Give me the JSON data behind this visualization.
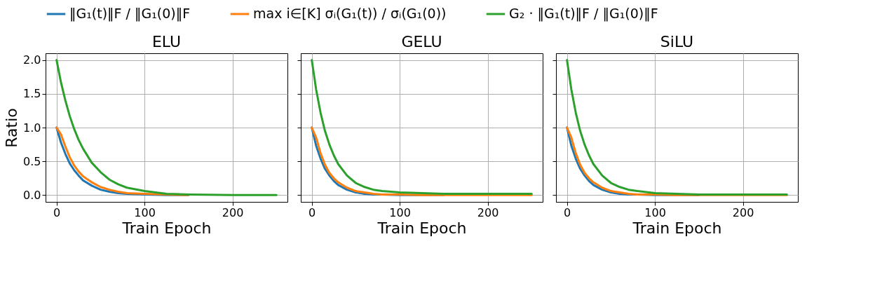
{
  "chart_data": [
    {
      "type": "line",
      "title": "ELU",
      "xlabel": "Train Epoch",
      "ylabel": "Ratio",
      "x": [
        0,
        5,
        10,
        15,
        20,
        25,
        30,
        40,
        50,
        60,
        70,
        80,
        100,
        125,
        150,
        200,
        250
      ],
      "series": [
        {
          "name": "‖G₁(t)‖F / ‖G₁(0)‖F",
          "color": "#1f77b4",
          "values": [
            1,
            0.78,
            0.61,
            0.47,
            0.37,
            0.29,
            0.22,
            0.14,
            0.08,
            0.05,
            0.03,
            0.02,
            0.01,
            0,
            0,
            null,
            null
          ]
        },
        {
          "name": "max i∈[K] σᵢ(G₁(t)) / σᵢ(G₁(0))",
          "color": "#ff7f0e",
          "values": [
            1,
            0.9,
            0.72,
            0.56,
            0.44,
            0.35,
            0.28,
            0.19,
            0.12,
            0.08,
            0.05,
            0.03,
            0.02,
            0.01,
            0,
            null,
            null
          ]
        },
        {
          "name": "G₂ · ‖G₁(t)‖F / ‖G₁(0)‖F",
          "color": "#2ca02c",
          "values": [
            2,
            1.67,
            1.4,
            1.17,
            0.98,
            0.82,
            0.69,
            0.48,
            0.34,
            0.23,
            0.16,
            0.11,
            0.06,
            0.02,
            0.01,
            0,
            0
          ]
        }
      ],
      "xlim": [
        -12.5,
        262.5
      ],
      "xticks": [
        0,
        100,
        200
      ],
      "ylim": [
        -0.1,
        2.1
      ],
      "yticks": [
        {
          "value": 0,
          "label": "0.0"
        },
        {
          "value": 0.5,
          "label": "0.5"
        },
        {
          "value": 1,
          "label": "1.0"
        },
        {
          "value": 1.5,
          "label": "1.5"
        },
        {
          "value": 2,
          "label": "2.0"
        }
      ],
      "grid": true,
      "legend": "top",
      "line_style": "solid",
      "marker": "none"
    },
    {
      "type": "line",
      "title": "GELU",
      "xlabel": "Train Epoch",
      "x": [
        0,
        5,
        10,
        15,
        20,
        25,
        30,
        40,
        50,
        60,
        70,
        80,
        100,
        125,
        150,
        200,
        250
      ],
      "series": [
        {
          "name": "‖G₁(t)‖F / ‖G₁(0)‖F",
          "color": "#1f77b4",
          "values": [
            1,
            0.73,
            0.54,
            0.39,
            0.29,
            0.21,
            0.15,
            0.08,
            0.04,
            0.02,
            0.01,
            0.01,
            0,
            0,
            0,
            null,
            null
          ]
        },
        {
          "name": "max i∈[K] σᵢ(G₁(t)) / σᵢ(G₁(0))",
          "color": "#ff7f0e",
          "values": [
            1,
            0.85,
            0.62,
            0.45,
            0.33,
            0.25,
            0.19,
            0.11,
            0.06,
            0.04,
            0.02,
            0.01,
            0.01,
            0,
            0,
            0,
            0
          ]
        },
        {
          "name": "G₂ · ‖G₁(t)‖F / ‖G₁(0)‖F",
          "color": "#2ca02c",
          "values": [
            2,
            1.56,
            1.22,
            0.95,
            0.75,
            0.59,
            0.46,
            0.29,
            0.18,
            0.12,
            0.08,
            0.06,
            0.04,
            0.03,
            0.02,
            0.02,
            0.02
          ]
        }
      ],
      "xlim": [
        -12.5,
        262.5
      ],
      "xticks": [
        0,
        100,
        200
      ],
      "ylim": [
        -0.1,
        2.1
      ],
      "yticks": [
        0,
        0.5,
        1,
        1.5,
        2
      ],
      "grid": true,
      "tick_labels": "x",
      "line_style": "solid",
      "marker": "none"
    },
    {
      "type": "line",
      "title": "SiLU",
      "xlabel": "Train Epoch",
      "x": [
        0,
        5,
        10,
        15,
        20,
        25,
        30,
        40,
        50,
        60,
        70,
        80,
        100,
        125,
        150,
        200,
        250
      ],
      "series": [
        {
          "name": "‖G₁(t)‖F / ‖G₁(0)‖F",
          "color": "#1f77b4",
          "values": [
            1,
            0.73,
            0.54,
            0.39,
            0.29,
            0.21,
            0.15,
            0.08,
            0.04,
            0.02,
            0.01,
            0.01,
            0,
            0,
            0,
            null,
            null
          ]
        },
        {
          "name": "max i∈[K] σᵢ(G₁(t)) / σᵢ(G₁(0))",
          "color": "#ff7f0e",
          "values": [
            1,
            0.85,
            0.62,
            0.45,
            0.33,
            0.25,
            0.19,
            0.11,
            0.06,
            0.04,
            0.02,
            0.01,
            0.01,
            0,
            0,
            0,
            0
          ]
        },
        {
          "name": "G₂ · ‖G₁(t)‖F / ‖G₁(0)‖F",
          "color": "#2ca02c",
          "values": [
            2,
            1.56,
            1.22,
            0.95,
            0.75,
            0.59,
            0.46,
            0.29,
            0.18,
            0.12,
            0.08,
            0.06,
            0.03,
            0.02,
            0.01,
            0.01,
            0.01
          ]
        }
      ],
      "xlim": [
        -12.5,
        262.5
      ],
      "xticks": [
        0,
        100,
        200
      ],
      "ylim": [
        -0.1,
        2.1
      ],
      "yticks": [
        0,
        0.5,
        1,
        1.5,
        2
      ],
      "grid": true,
      "tick_labels": "x",
      "line_style": "solid",
      "marker": "none"
    }
  ]
}
